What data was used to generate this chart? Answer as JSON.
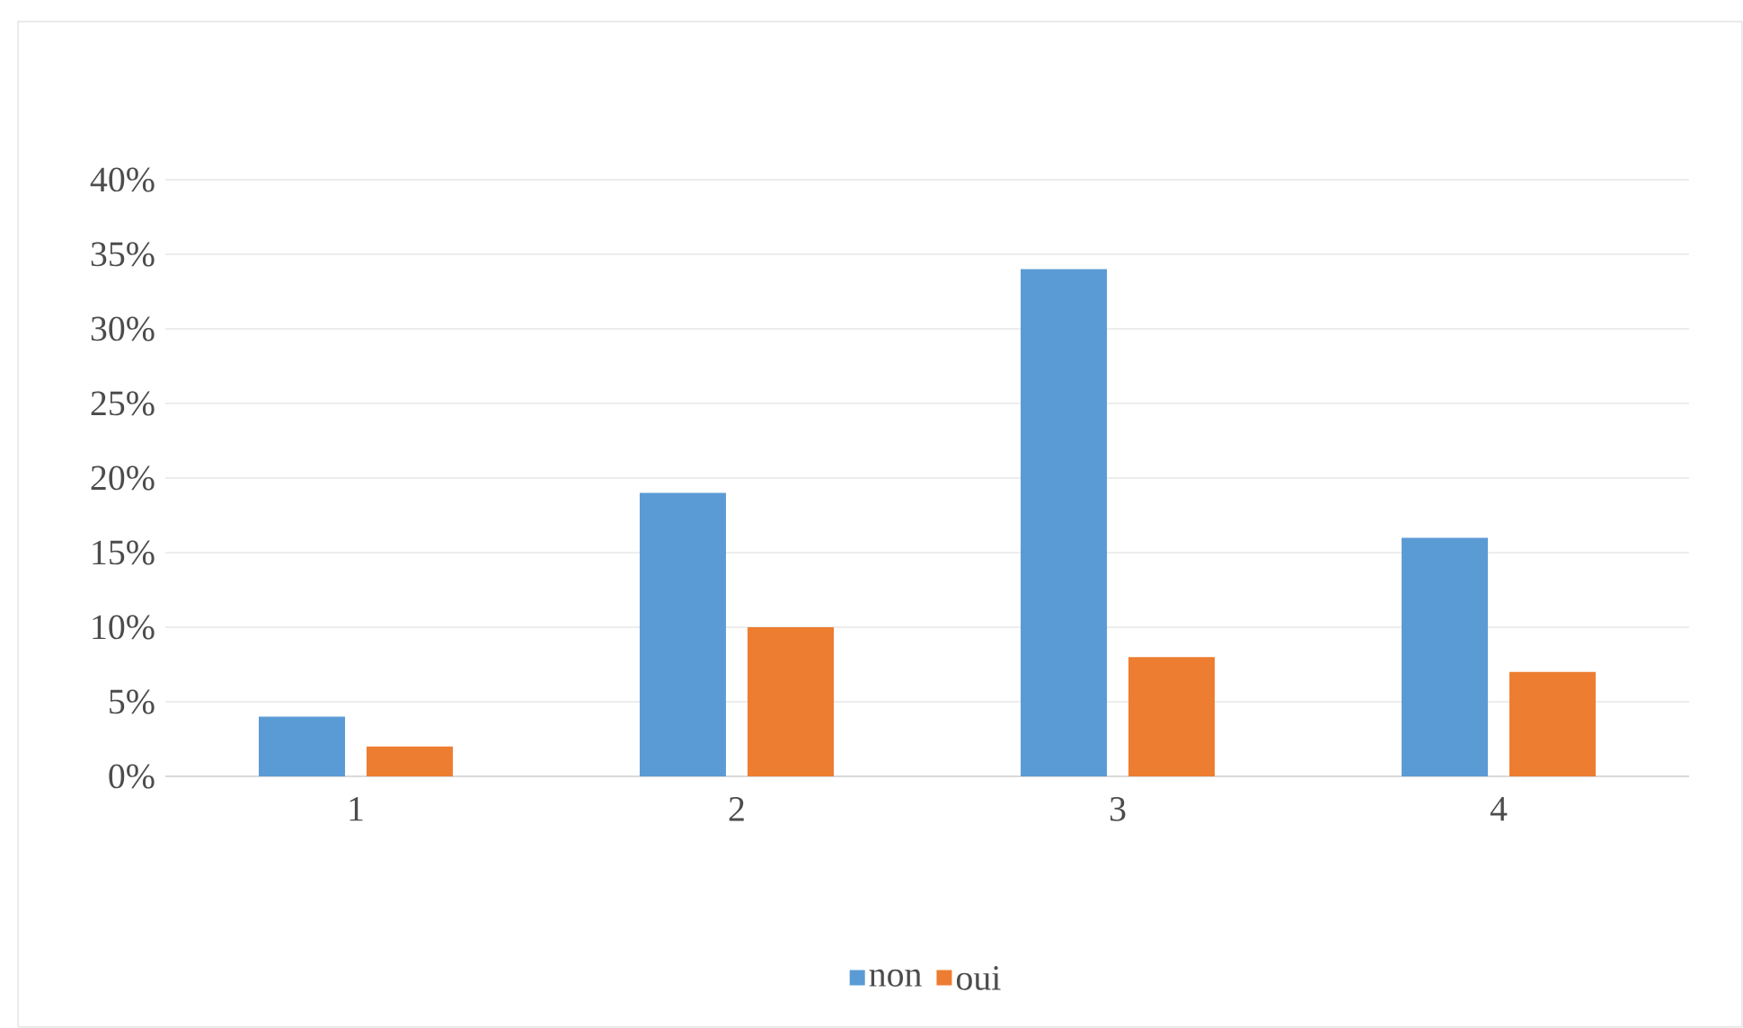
{
  "chart_data": {
    "type": "bar",
    "categories": [
      "1",
      "2",
      "3",
      "4"
    ],
    "series": [
      {
        "name": "non",
        "color": "#5b9bd5",
        "values": [
          4,
          19,
          34,
          16
        ]
      },
      {
        "name": "oui",
        "color": "#ed7d31",
        "values": [
          2,
          10,
          8,
          7
        ]
      }
    ],
    "ylim": [
      0,
      40
    ],
    "yticks": [
      {
        "value": 0,
        "label": "0%"
      },
      {
        "value": 5,
        "label": "5%"
      },
      {
        "value": 10,
        "label": "10%"
      },
      {
        "value": 15,
        "label": "15%"
      },
      {
        "value": 20,
        "label": "20%"
      },
      {
        "value": 25,
        "label": "25%"
      },
      {
        "value": 30,
        "label": "30%"
      },
      {
        "value": 35,
        "label": "35%"
      },
      {
        "value": 40,
        "label": "40%"
      }
    ],
    "grid": "y",
    "legend": "bottom"
  }
}
